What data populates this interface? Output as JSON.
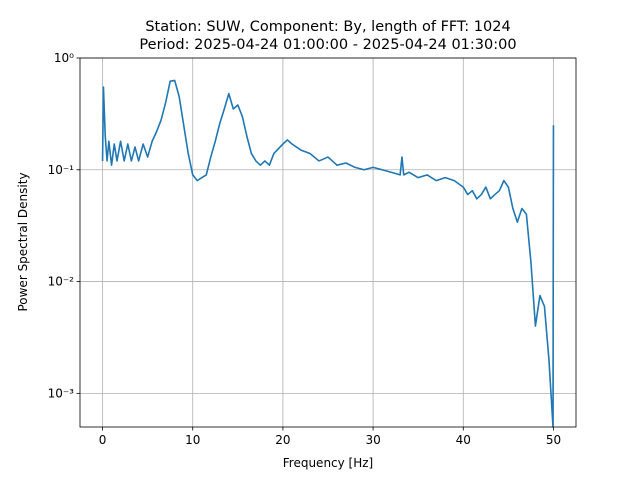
{
  "chart_data": {
    "type": "line",
    "title": [
      "Station: SUW, Component: By, length of FFT: 1024",
      "Period: 2025-04-24 01:00:00 - 2025-04-24 01:30:00"
    ],
    "x_label": "Frequency [Hz]",
    "y_label": "Power Spectral Density",
    "log_y": true,
    "grid": true,
    "xlim": [
      -2.5,
      52.5
    ],
    "xticks": [
      0,
      10,
      20,
      30,
      40,
      50
    ],
    "ylim": [
      0.0005,
      1
    ],
    "yticks": [
      {
        "value": 1,
        "label": "10⁰"
      },
      {
        "value": 0.1,
        "label": "10⁻¹"
      },
      {
        "value": 0.01,
        "label": "10⁻²"
      },
      {
        "value": 0.001,
        "label": "10⁻³"
      }
    ],
    "series": [
      {
        "color": "#1f77b4",
        "x": [
          0,
          0.1,
          0.3,
          0.5,
          0.7,
          1,
          1.3,
          1.6,
          2,
          2.4,
          2.8,
          3.2,
          3.6,
          4,
          4.5,
          5,
          5.5,
          6,
          6.5,
          7,
          7.5,
          8,
          8.5,
          9,
          9.5,
          10,
          10.5,
          11,
          11.5,
          12,
          12.5,
          13,
          13.5,
          14,
          14.5,
          15,
          15.5,
          16,
          16.5,
          17,
          17.5,
          18,
          18.5,
          19,
          20,
          20.5,
          21,
          22,
          23,
          24,
          25,
          26,
          27,
          28,
          29,
          30,
          31,
          32,
          33,
          33.2,
          33.4,
          34,
          35,
          36,
          37,
          38,
          39,
          40,
          40.5,
          41,
          41.5,
          42,
          42.5,
          43,
          43.5,
          44,
          44.5,
          45,
          45.5,
          46,
          46.5,
          47,
          47.5,
          48,
          48.5,
          49,
          49.5,
          49.95,
          50
        ],
        "values": [
          0.12,
          0.55,
          0.2,
          0.12,
          0.18,
          0.11,
          0.17,
          0.12,
          0.18,
          0.12,
          0.17,
          0.12,
          0.16,
          0.12,
          0.17,
          0.13,
          0.18,
          0.22,
          0.28,
          0.4,
          0.62,
          0.63,
          0.45,
          0.25,
          0.14,
          0.09,
          0.08,
          0.085,
          0.09,
          0.13,
          0.18,
          0.26,
          0.35,
          0.48,
          0.35,
          0.38,
          0.3,
          0.2,
          0.14,
          0.12,
          0.11,
          0.12,
          0.11,
          0.14,
          0.17,
          0.185,
          0.17,
          0.15,
          0.14,
          0.12,
          0.13,
          0.11,
          0.115,
          0.105,
          0.1,
          0.105,
          0.1,
          0.095,
          0.09,
          0.13,
          0.09,
          0.095,
          0.085,
          0.09,
          0.08,
          0.085,
          0.08,
          0.07,
          0.06,
          0.065,
          0.055,
          0.06,
          0.07,
          0.055,
          0.06,
          0.065,
          0.08,
          0.07,
          0.045,
          0.034,
          0.045,
          0.04,
          0.015,
          0.004,
          0.0075,
          0.006,
          0.002,
          0.0005,
          0.25
        ]
      }
    ]
  }
}
